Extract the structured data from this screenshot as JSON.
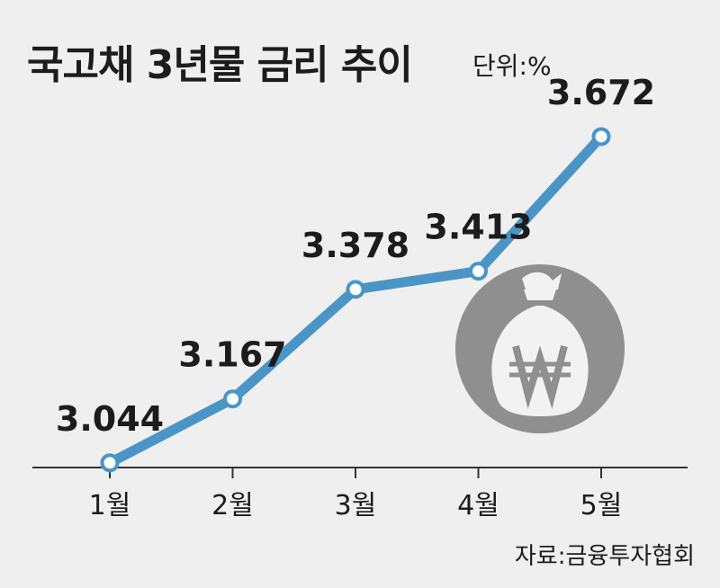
{
  "header": {
    "title": "국고채 3년물 금리 추이",
    "unit": "단위:%"
  },
  "footer": {
    "source": "자료:금융투자협회"
  },
  "colors": {
    "line": "#4b95c6",
    "marker_fill": "#ffffff",
    "axis": "#333333",
    "background": "#efefef",
    "icon_circle": "#8f8f8f",
    "icon_fg": "#f2f2f2"
  },
  "icons": {
    "illustration": "money-bag-won-icon"
  },
  "chart_data": {
    "type": "line",
    "categories": [
      "1월",
      "2월",
      "3월",
      "4월",
      "5월"
    ],
    "values": [
      3.044,
      3.167,
      3.378,
      3.413,
      3.672
    ],
    "data_labels": [
      "3.044",
      "3.167",
      "3.378",
      "3.413",
      "3.672"
    ],
    "title": "국고채 3년물 금리 추이",
    "unit": "단위:%",
    "xlabel": "",
    "ylabel": "",
    "ylim": [
      2.9,
      3.8
    ],
    "grid": false,
    "legend": "none"
  }
}
